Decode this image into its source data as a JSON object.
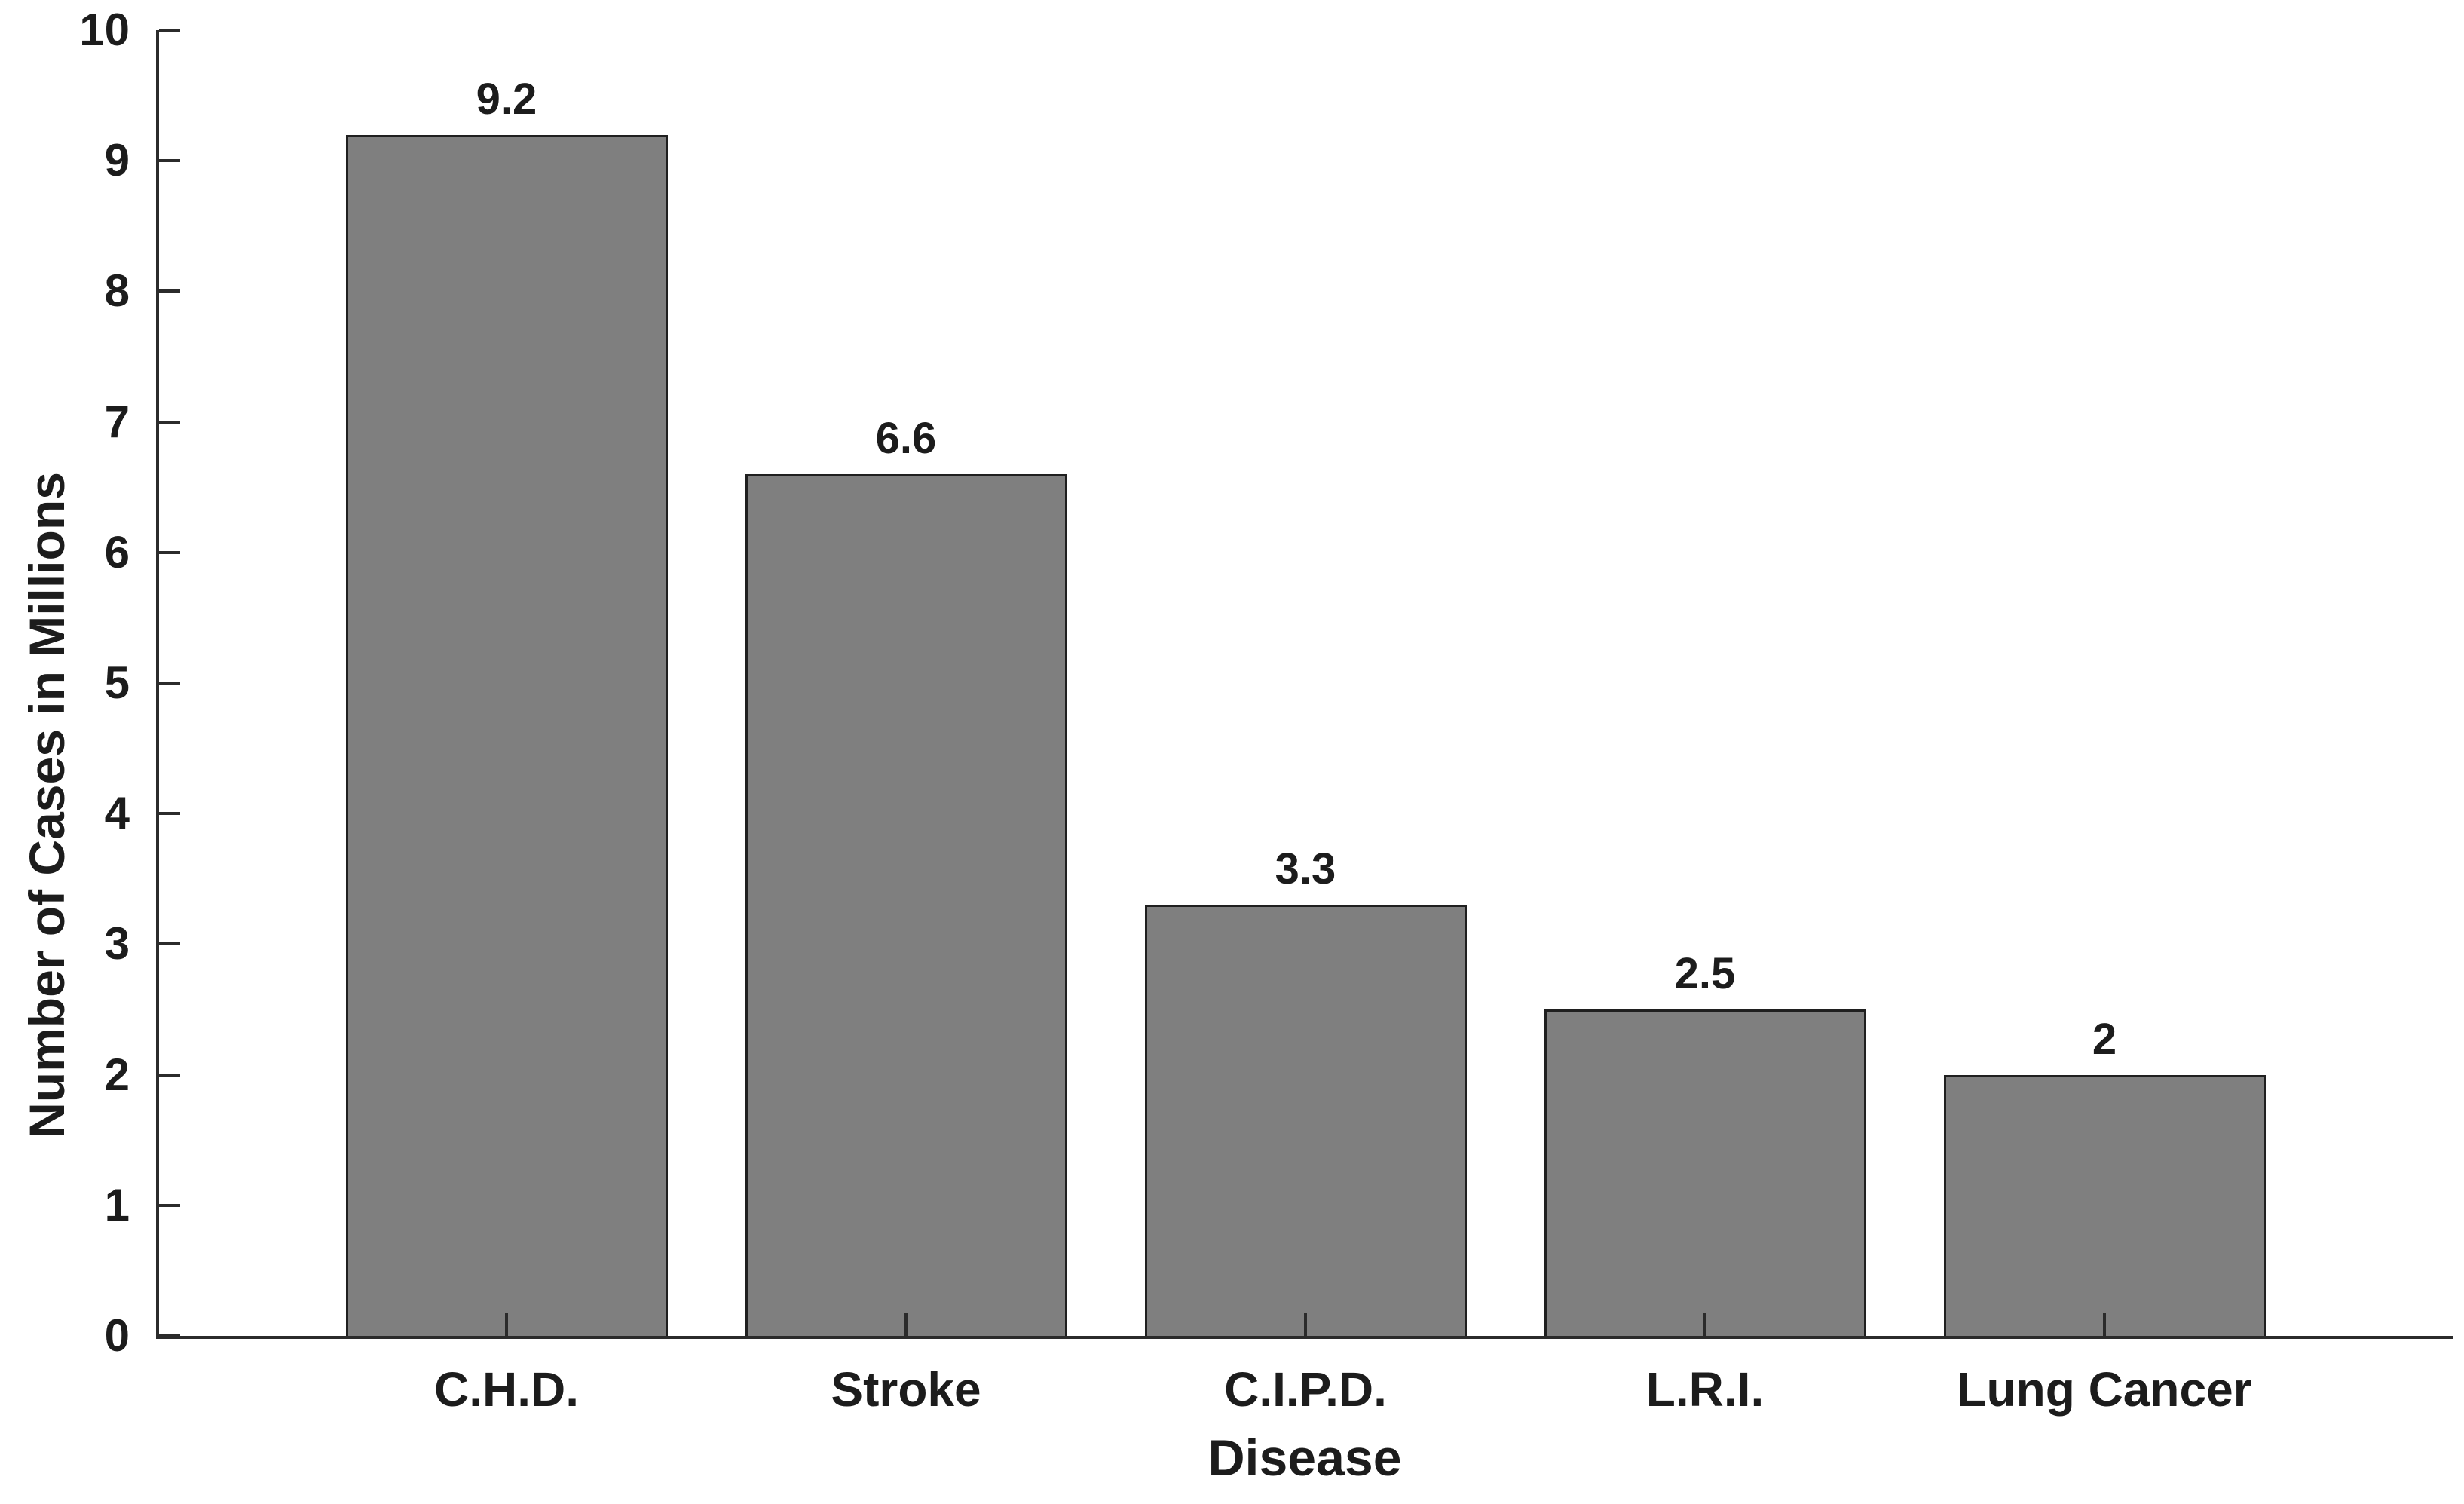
{
  "chart_data": {
    "type": "bar",
    "title": "",
    "categories": [
      "C.H.D.",
      "Stroke",
      "C.I.P.D.",
      "L.R.I.",
      "Lung Cancer"
    ],
    "values": [
      9.2,
      6.6,
      3.3,
      2.5,
      2
    ],
    "value_labels": [
      "9.2",
      "6.6",
      "3.3",
      "2.5",
      "2"
    ],
    "xlabel": "Disease",
    "ylabel": "Number of Cases in Millions",
    "ylim": [
      0,
      10
    ],
    "yticks": [
      0,
      1,
      2,
      3,
      4,
      5,
      6,
      7,
      8,
      9,
      10
    ],
    "ytick_labels": [
      "0",
      "1",
      "2",
      "3",
      "4",
      "5",
      "6",
      "7",
      "8",
      "9",
      "10"
    ],
    "grid": false,
    "legend": null,
    "colors": {
      "bar_fill": "#7f7f7f",
      "bar_edge": "#1f1f1f",
      "axis": "#2b2b2b",
      "text": "#1c1c1c",
      "background": "#ffffff"
    }
  }
}
